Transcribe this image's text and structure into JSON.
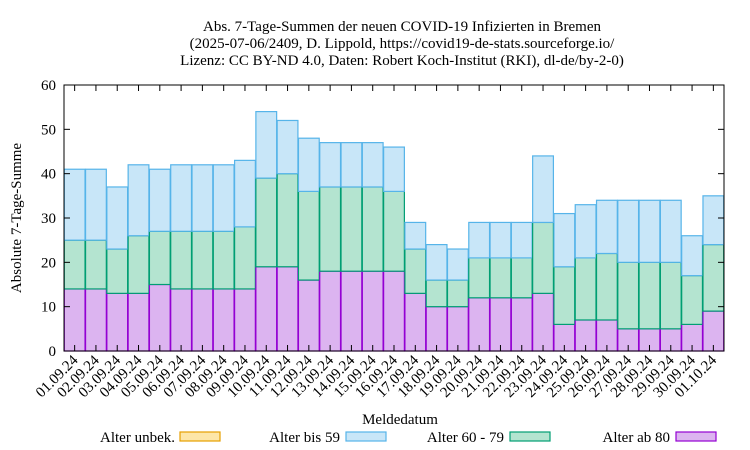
{
  "chart_data": {
    "type": "bar",
    "stacked": true,
    "title": [
      "Abs. 7-Tage-Summen der neuen COVID-19 Infizierten in Bremen",
      "(2025-07-06/2409, D. Lippold, https://covid19-de-stats.sourceforge.io/",
      "Lizenz: CC BY-ND 4.0, Daten: Robert Koch-Institut (RKI), dl-de/by-2-0)"
    ],
    "xlabel": "Meldedatum",
    "ylabel": "Absolute 7-Tage-Summe",
    "ylim": [
      0,
      60
    ],
    "yticks": [
      0,
      10,
      20,
      30,
      40,
      50,
      60
    ],
    "grid": false,
    "legend_position": "bottom",
    "categories": [
      "01.09.24",
      "02.09.24",
      "03.09.24",
      "04.09.24",
      "05.09.24",
      "06.09.24",
      "07.09.24",
      "08.09.24",
      "09.09.24",
      "10.09.24",
      "11.09.24",
      "12.09.24",
      "13.09.24",
      "14.09.24",
      "15.09.24",
      "16.09.24",
      "17.09.24",
      "18.09.24",
      "19.09.24",
      "20.09.24",
      "21.09.24",
      "22.09.24",
      "23.09.24",
      "24.09.24",
      "25.09.24",
      "26.09.24",
      "27.09.24",
      "28.09.24",
      "29.09.24",
      "30.09.24",
      "01.10.24"
    ],
    "series": [
      {
        "name": "Alter ab 80",
        "color": "#dcb4f0",
        "edge": "#9400d3",
        "values": [
          14,
          14,
          13,
          13,
          15,
          14,
          14,
          14,
          14,
          19,
          19,
          16,
          18,
          18,
          18,
          18,
          13,
          10,
          10,
          12,
          12,
          12,
          13,
          6,
          7,
          7,
          5,
          5,
          5,
          6,
          9
        ]
      },
      {
        "name": "Alter 60 - 79",
        "color": "#b4e4d0",
        "edge": "#009e73",
        "values": [
          11,
          11,
          10,
          13,
          12,
          13,
          13,
          13,
          14,
          20,
          21,
          20,
          19,
          19,
          19,
          18,
          10,
          6,
          6,
          9,
          9,
          9,
          16,
          13,
          14,
          15,
          15,
          15,
          15,
          11,
          15
        ]
      },
      {
        "name": "Alter bis 59",
        "color": "#c8e6f8",
        "edge": "#56b4e9",
        "values": [
          16,
          16,
          14,
          16,
          14,
          15,
          15,
          15,
          15,
          15,
          12,
          12,
          10,
          10,
          10,
          10,
          6,
          8,
          7,
          8,
          8,
          8,
          15,
          12,
          12,
          12,
          14,
          14,
          14,
          9,
          11
        ]
      },
      {
        "name": "Alter unbek.",
        "color": "#fde6a8",
        "edge": "#e69f00",
        "values": [
          0,
          0,
          0,
          0,
          0,
          0,
          0,
          0,
          0,
          0,
          0,
          0,
          0,
          0,
          0,
          0,
          0,
          0,
          0,
          0,
          0,
          0,
          0,
          0,
          0,
          0,
          0,
          0,
          0,
          0,
          0
        ]
      }
    ],
    "legend_order": [
      "Alter unbek.",
      "Alter bis 59",
      "Alter 60 - 79",
      "Alter ab 80"
    ]
  }
}
